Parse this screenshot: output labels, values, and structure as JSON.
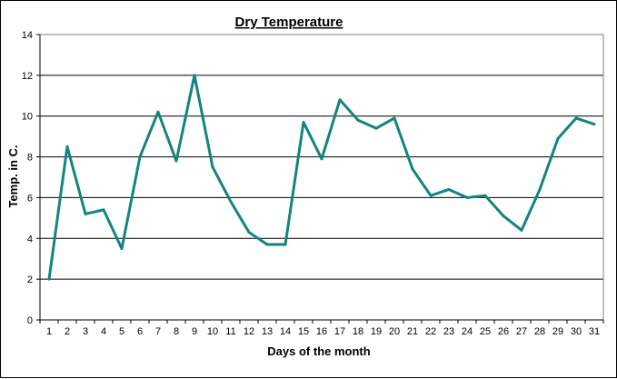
{
  "chart_data": {
    "type": "line",
    "title": "Dry Temperature",
    "xlabel": "Days of the month",
    "ylabel": "Temp. in C.",
    "ylim": [
      0,
      14
    ],
    "yticks": [
      0,
      2,
      4,
      6,
      8,
      10,
      12,
      14
    ],
    "grid": "horizontal",
    "line_color": "#138580",
    "categories": [
      "1",
      "2",
      "3",
      "4",
      "5",
      "6",
      "7",
      "8",
      "9",
      "10",
      "11",
      "12",
      "13",
      "14",
      "15",
      "16",
      "17",
      "18",
      "19",
      "20",
      "21",
      "22",
      "23",
      "24",
      "25",
      "26",
      "27",
      "28",
      "29",
      "30",
      "31"
    ],
    "values": [
      2.0,
      8.5,
      5.2,
      5.4,
      3.5,
      8.0,
      10.2,
      7.8,
      12.0,
      7.5,
      5.8,
      4.3,
      3.7,
      3.7,
      9.7,
      7.9,
      10.8,
      9.8,
      9.4,
      9.9,
      7.4,
      6.1,
      6.4,
      6.0,
      6.1,
      5.1,
      4.4,
      6.4,
      8.9,
      9.9,
      9.6
    ]
  }
}
